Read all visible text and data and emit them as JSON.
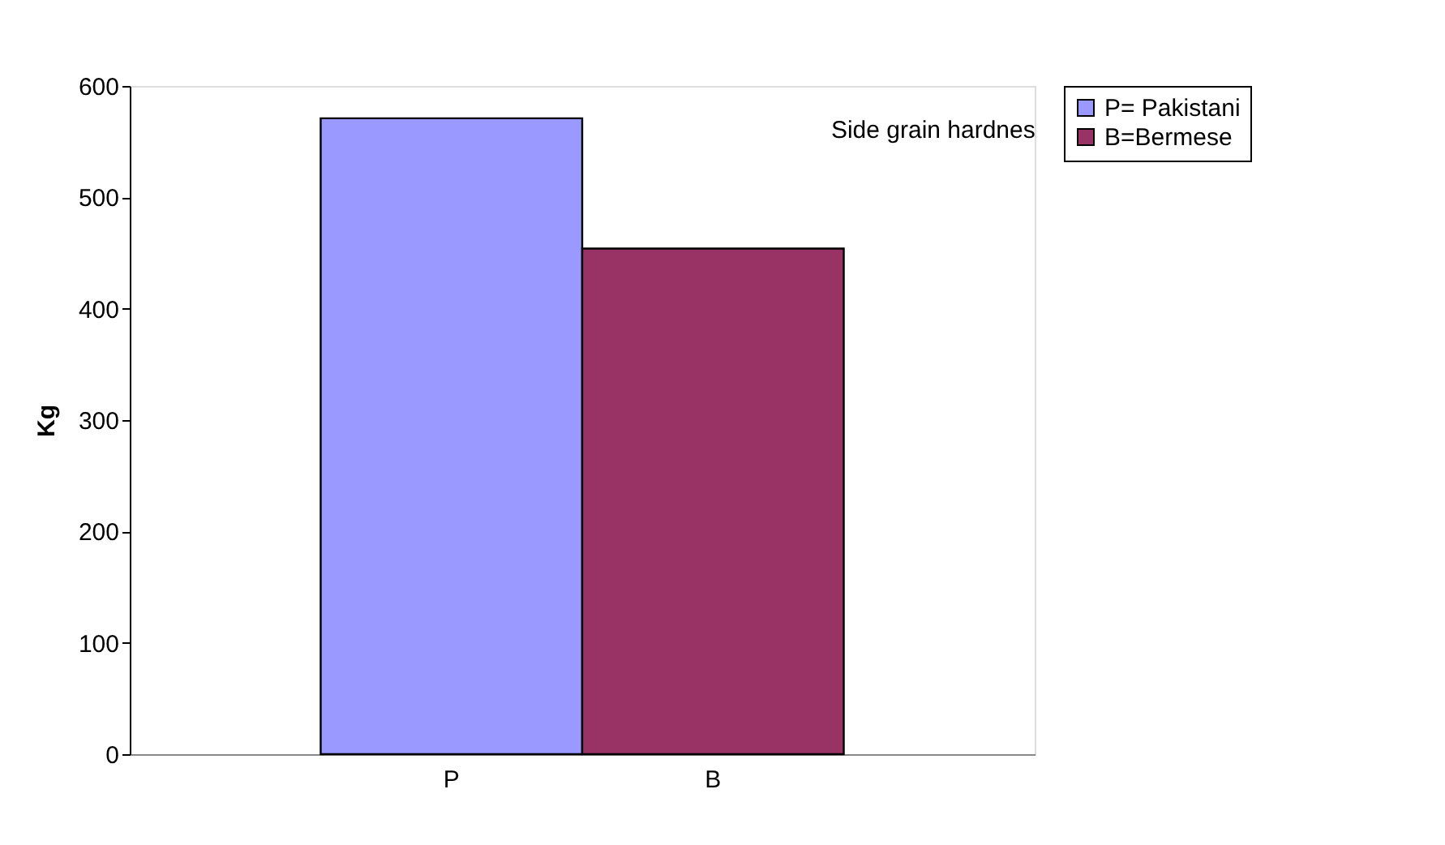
{
  "chart_data": {
    "type": "bar",
    "ylabel": "Kg",
    "categories": [
      "P",
      "B"
    ],
    "series": [
      {
        "name": "P= Pakistani",
        "color": "#9999ff",
        "values": [
          571,
          null
        ]
      },
      {
        "name": "B=Bermese",
        "color": "#993366",
        "values": [
          null,
          454
        ]
      }
    ],
    "ylim": [
      0,
      600
    ],
    "yticks": [
      0,
      100,
      200,
      300,
      400,
      500,
      600
    ],
    "grid": false,
    "legend": "right",
    "annotations": [
      "Side grain hardnes"
    ]
  }
}
